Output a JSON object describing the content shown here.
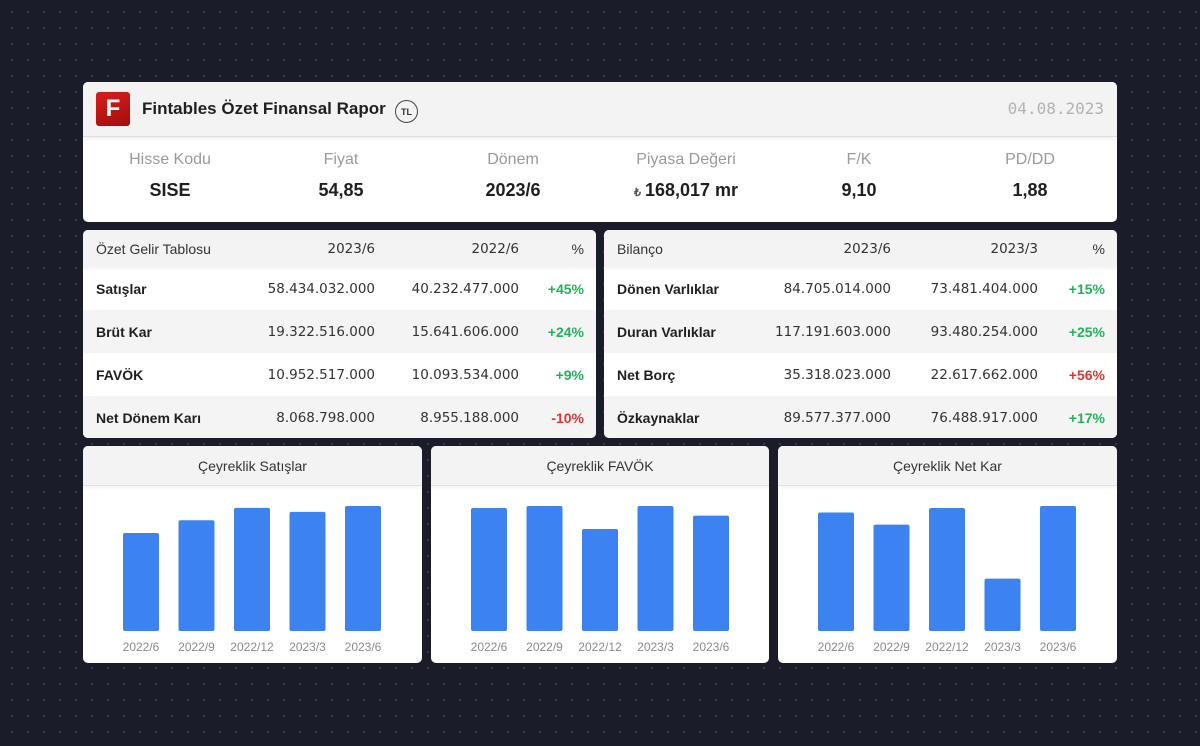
{
  "header": {
    "logo_letter": "F",
    "title": "Fintables Özet Finansal Rapor",
    "currency_badge": "TL",
    "date": "04.08.2023"
  },
  "metrics": [
    {
      "label": "Hisse Kodu",
      "value": "SISE"
    },
    {
      "label": "Fiyat",
      "value": "54,85"
    },
    {
      "label": "Dönem",
      "value": "2023/6"
    },
    {
      "label": "Piyasa Değeri",
      "value": "168,017 mr",
      "prefix_symbol": "₺"
    },
    {
      "label": "F/K",
      "value": "9,10"
    },
    {
      "label": "PD/DD",
      "value": "1,88"
    }
  ],
  "income_table": {
    "headers": [
      "Özet Gelir Tablosu",
      "2023/6",
      "2022/6",
      "%"
    ],
    "rows": [
      {
        "label": "Satışlar",
        "v1": "58.434.032.000",
        "v2": "40.232.477.000",
        "pct": "+45%",
        "dir": "pos"
      },
      {
        "label": "Brüt Kar",
        "v1": "19.322.516.000",
        "v2": "15.641.606.000",
        "pct": "+24%",
        "dir": "pos"
      },
      {
        "label": "FAVÖK",
        "v1": "10.952.517.000",
        "v2": "10.093.534.000",
        "pct": "+9%",
        "dir": "pos"
      },
      {
        "label": "Net Dönem Karı",
        "v1": "8.068.798.000",
        "v2": "8.955.188.000",
        "pct": "-10%",
        "dir": "neg"
      }
    ]
  },
  "balance_table": {
    "headers": [
      "Bilanço",
      "2023/6",
      "2023/3",
      "%"
    ],
    "rows": [
      {
        "label": "Dönen Varlıklar",
        "v1": "84.705.014.000",
        "v2": "73.481.404.000",
        "pct": "+15%",
        "dir": "pos"
      },
      {
        "label": "Duran Varlıklar",
        "v1": "117.191.603.000",
        "v2": "93.480.254.000",
        "pct": "+25%",
        "dir": "pos"
      },
      {
        "label": "Net Borç",
        "v1": "35.318.023.000",
        "v2": "22.617.662.000",
        "pct": "+56%",
        "dir": "neg"
      },
      {
        "label": "Özkaynaklar",
        "v1": "89.577.377.000",
        "v2": "76.488.917.000",
        "pct": "+17%",
        "dir": "pos"
      }
    ]
  },
  "colors": {
    "bar": "#3c82f0",
    "positive": "#22b25a",
    "negative": "#e03535",
    "logo": "#c51515"
  },
  "chart_data": [
    {
      "type": "bar",
      "title": "Çeyreklik Satışlar",
      "categories": [
        "2022/6",
        "2022/9",
        "2022/12",
        "2023/3",
        "2023/6"
      ],
      "values": [
        78.4,
        88.6,
        98.5,
        95.3,
        100
      ],
      "ylim": [
        0,
        100
      ],
      "grid": false,
      "legend": "none"
    },
    {
      "type": "bar",
      "title": "Çeyreklik FAVÖK",
      "categories": [
        "2022/6",
        "2022/9",
        "2022/12",
        "2023/3",
        "2023/6"
      ],
      "values": [
        98.4,
        100,
        81.6,
        100,
        92.3
      ],
      "ylim": [
        0,
        100
      ],
      "grid": false,
      "legend": "none"
    },
    {
      "type": "bar",
      "title": "Çeyreklik Net Kar",
      "categories": [
        "2022/6",
        "2022/9",
        "2022/12",
        "2023/3",
        "2023/6"
      ],
      "values": [
        94.8,
        85.1,
        98.4,
        41.9,
        100
      ],
      "ylim": [
        0,
        100
      ],
      "grid": false,
      "legend": "none"
    }
  ]
}
